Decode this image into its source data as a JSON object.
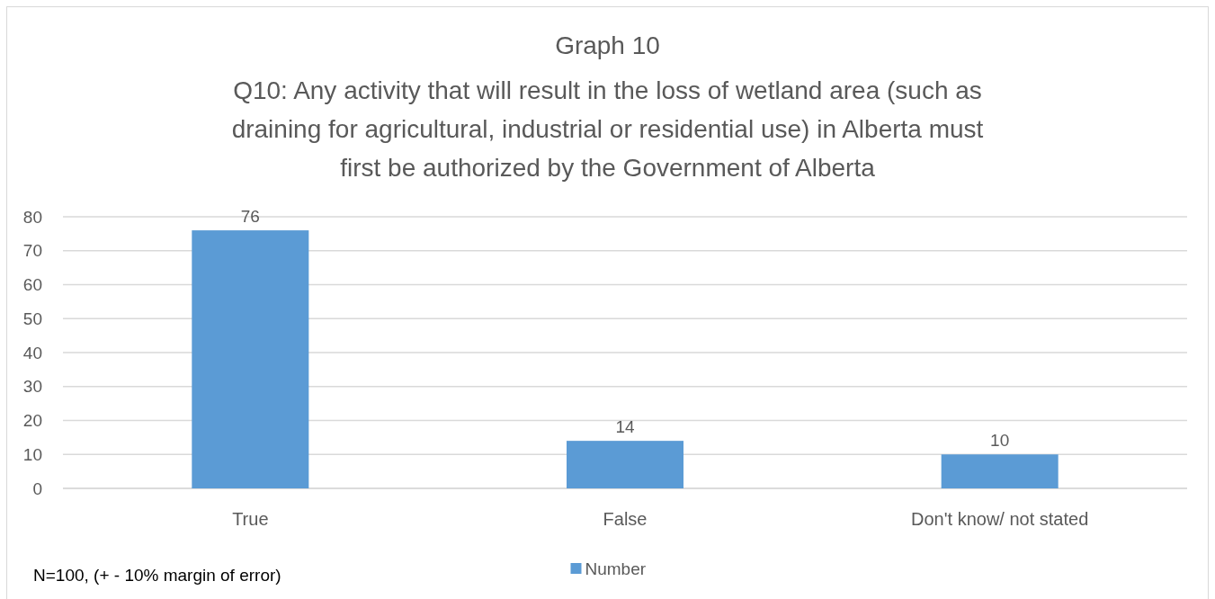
{
  "chart_data": {
    "type": "bar",
    "title": "Graph 10",
    "subtitle": "Q10: Any activity that will result in the loss of wetland area (such as draining for agricultural, industrial or residential use) in Alberta must first be authorized by the Government of Alberta",
    "categories": [
      "True",
      "False",
      "Don't know/ not stated"
    ],
    "series": [
      {
        "name": "Number",
        "color": "#5b9bd5",
        "values": [
          76,
          14,
          10
        ]
      }
    ],
    "ylim": [
      0,
      80
    ],
    "yticks": [
      0,
      10,
      20,
      30,
      40,
      50,
      60,
      70,
      80
    ],
    "grid": "y",
    "legend": "bottom",
    "data_labels": true,
    "annotations": [
      "N=100, (+ - 10% margin of error)"
    ]
  }
}
